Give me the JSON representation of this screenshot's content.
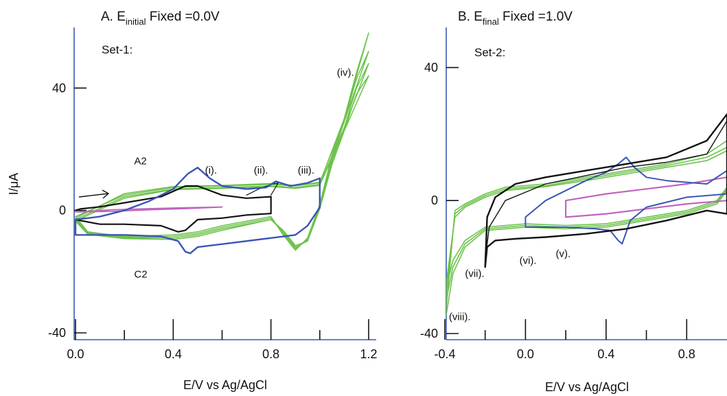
{
  "chart_data": [
    {
      "type": "line",
      "title_prefix": "A. E",
      "title_subscript": "initial",
      "title_suffix": " Fixed =0.0V",
      "set_label": "Set-1:",
      "xlabel": "E/V vs Ag/AgCl",
      "ylabel": "I/μA",
      "xlim": [
        0.0,
        1.2
      ],
      "ylim": [
        -40,
        58
      ],
      "x_ticks": [
        0.0,
        0.4,
        0.8,
        1.2
      ],
      "x_tick_labels": [
        "0.0",
        "0.4",
        "0.8",
        "1.2"
      ],
      "y_ticks": [
        -40,
        0,
        40
      ],
      "y_tick_labels": [
        "-40",
        "0",
        "40"
      ],
      "annotations": [
        {
          "text": "A2",
          "x": 0.24,
          "y": 15
        },
        {
          "text": "C2",
          "x": 0.24,
          "y": -22
        },
        {
          "text": "(i).",
          "x": 0.53,
          "y": 12
        },
        {
          "text": "(ii).",
          "x": 0.73,
          "y": 12
        },
        {
          "text": "(iii).",
          "x": 0.91,
          "y": 12
        },
        {
          "text": "(iv).",
          "x": 1.07,
          "y": 44
        }
      ],
      "series": [
        {
          "color": "#6cc24a",
          "width": 1.5,
          "x": [
            0.0,
            0.2,
            0.4,
            0.6,
            0.8,
            0.9,
            1.0,
            1.1,
            1.2,
            1.15,
            1.1,
            1.05,
            1.0,
            0.95,
            0.9,
            0.85,
            0.8,
            0.6,
            0.5,
            0.4,
            0.2,
            0.05,
            0.0
          ],
          "y": [
            -2,
            5,
            7.5,
            8,
            8.5,
            8,
            9,
            30,
            58,
            45,
            30,
            18,
            2,
            -9,
            -13,
            -8,
            -2,
            -5,
            -7,
            -8,
            -8.5,
            -7,
            -2
          ]
        },
        {
          "color": "#6cc24a",
          "width": 1.5,
          "x": [
            0.0,
            0.2,
            0.4,
            0.6,
            0.8,
            0.9,
            1.0,
            1.1,
            1.2,
            1.15,
            1.1,
            1.05,
            1.0,
            0.95,
            0.9,
            0.85,
            0.8,
            0.6,
            0.5,
            0.4,
            0.2,
            0.05,
            0.0
          ],
          "y": [
            -3,
            4.5,
            7,
            7.5,
            8,
            7.5,
            8.5,
            27,
            48,
            40,
            27,
            16,
            1,
            -10,
            -12,
            -7,
            -3,
            -6,
            -8,
            -9,
            -9,
            -7.5,
            -3
          ]
        },
        {
          "color": "#6cc24a",
          "width": 1.5,
          "x": [
            0.0,
            0.2,
            0.4,
            0.6,
            0.8,
            0.9,
            1.0,
            1.1,
            1.2,
            1.15,
            1.1,
            1.05,
            1.0,
            0.95,
            0.9,
            0.85,
            0.8,
            0.6,
            0.5,
            0.4,
            0.2,
            0.05,
            0.0
          ],
          "y": [
            -2.5,
            5.5,
            7.8,
            8.2,
            8.8,
            8.2,
            9.2,
            29,
            52,
            43,
            29,
            17,
            1.5,
            -9.5,
            -12.5,
            -7.5,
            -2.5,
            -5.5,
            -7.5,
            -8.5,
            -8.8,
            -7.2,
            -2.5
          ]
        },
        {
          "color": "#6cc24a",
          "width": 1.5,
          "x": [
            0.0,
            0.2,
            0.4,
            0.6,
            0.8,
            0.9,
            1.0,
            1.1,
            1.2,
            1.15,
            1.1,
            1.05,
            1.0,
            0.95,
            0.9,
            0.85,
            0.8,
            0.6,
            0.5,
            0.4,
            0.2,
            0.05,
            0.0
          ],
          "y": [
            -3.5,
            4,
            6.8,
            7.2,
            7.8,
            7.2,
            8.2,
            26,
            44,
            38,
            26,
            15,
            0.5,
            -10,
            -11.5,
            -6.5,
            -3,
            -6.5,
            -8.5,
            -9.5,
            -9.2,
            -7.8,
            -3.5
          ]
        },
        {
          "color": "#c064c0",
          "width": 1.8,
          "x": [
            0.0,
            0.15,
            0.3,
            0.45,
            0.6,
            0.45,
            0.3,
            0.15,
            0.0
          ],
          "y": [
            -0.5,
            0.2,
            0.6,
            0.9,
            1.1,
            0.6,
            0.2,
            -0.3,
            -0.5
          ]
        },
        {
          "color": "#111111",
          "width": 2.2,
          "x": [
            0.0,
            0.02,
            0.1,
            0.2,
            0.35,
            0.45,
            0.5,
            0.6,
            0.7,
            0.8,
            0.8,
            0.7,
            0.6,
            0.5,
            0.45,
            0.42,
            0.35,
            0.2,
            0.1,
            0.0
          ],
          "y": [
            0.0,
            0.5,
            1.2,
            2.5,
            4.5,
            8.0,
            8.0,
            5.0,
            4.0,
            4.5,
            -1.0,
            -1.5,
            -2.5,
            -3.0,
            -6.5,
            -7.0,
            -5.0,
            -4.5,
            -4.5,
            -3.0
          ]
        },
        {
          "color": "#111111",
          "width": 1.2,
          "x": [
            0.7,
            0.75,
            0.8,
            0.83,
            0.8
          ],
          "y": [
            5.0,
            7.0,
            8.5,
            9.0,
            5.0
          ]
        },
        {
          "color": "#3b55b5",
          "width": 2.4,
          "x": [
            0.0,
            0.1,
            0.2,
            0.3,
            0.4,
            0.46,
            0.5,
            0.55,
            0.6,
            0.7,
            0.78,
            0.82,
            0.88,
            0.95,
            1.0,
            1.0,
            0.95,
            0.9,
            0.8,
            0.6,
            0.5,
            0.47,
            0.45,
            0.42,
            0.35,
            0.2,
            0.0,
            0.0
          ],
          "y": [
            -3.0,
            -2.0,
            0.0,
            3.0,
            7.0,
            12.0,
            14.0,
            10.5,
            8.0,
            7.0,
            7.5,
            9.5,
            8.0,
            9.0,
            10.5,
            1.0,
            -5.0,
            -8.0,
            -9.0,
            -11.0,
            -12.0,
            -14.0,
            -13.5,
            -10.0,
            -8.5,
            -8.0,
            -8.0,
            -3.0
          ]
        }
      ]
    },
    {
      "type": "line",
      "title_prefix": "B. E",
      "title_subscript": "final",
      "title_suffix": " Fixed =1.0V",
      "set_label": "Set-2:",
      "xlabel": "E/V vs Ag/AgCl",
      "ylabel": "",
      "xlim": [
        -0.4,
        1.0
      ],
      "ylim": [
        -40,
        50
      ],
      "x_ticks": [
        -0.4,
        0.0,
        0.4,
        0.8
      ],
      "x_tick_labels": [
        "-0.4",
        "0.0",
        "0.4",
        "0.8"
      ],
      "y_ticks": [
        -40,
        0,
        40
      ],
      "y_tick_labels": [
        "-40",
        "0",
        "40"
      ],
      "annotations": [
        {
          "text": "(v).",
          "x": 0.15,
          "y": -17
        },
        {
          "text": "(vi).",
          "x": -0.03,
          "y": -19
        },
        {
          "text": "(vii).",
          "x": -0.3,
          "y": -23
        },
        {
          "text": "(viii).",
          "x": -0.38,
          "y": -36
        }
      ],
      "series": [
        {
          "color": "#6cc24a",
          "width": 1.6,
          "x": [
            -0.4,
            -0.36,
            -0.3,
            -0.2,
            0.0,
            0.2,
            0.4,
            0.6,
            0.8,
            0.95,
            1.0,
            1.0,
            0.9,
            0.7,
            0.5,
            0.3,
            0.1,
            -0.1,
            -0.2,
            -0.3,
            -0.35,
            -0.4
          ],
          "y": [
            -37,
            -22,
            -14,
            -9,
            -8,
            -8.5,
            -8,
            -6,
            -4,
            -1,
            3,
            18,
            14,
            11,
            9,
            7,
            5,
            4,
            2,
            -1,
            -3,
            -37
          ]
        },
        {
          "color": "#6cc24a",
          "width": 1.6,
          "x": [
            -0.4,
            -0.36,
            -0.3,
            -0.2,
            0.0,
            0.2,
            0.4,
            0.6,
            0.8,
            0.95,
            1.0,
            1.0,
            0.9,
            0.7,
            0.5,
            0.3,
            0.1,
            -0.1,
            -0.2,
            -0.3,
            -0.35,
            -0.4
          ],
          "y": [
            -32,
            -20,
            -13,
            -8.5,
            -7.5,
            -8,
            -7.5,
            -5.5,
            -3.5,
            -0.5,
            3.5,
            16,
            13,
            10.5,
            8.5,
            6.5,
            4.5,
            3.5,
            1.5,
            -1.5,
            -4,
            -32
          ]
        },
        {
          "color": "#6cc24a",
          "width": 1.6,
          "x": [
            -0.4,
            -0.36,
            -0.3,
            -0.2,
            0.0,
            0.2,
            0.4,
            0.6,
            0.8,
            0.95,
            1.0,
            1.0,
            0.9,
            0.7,
            0.5,
            0.3,
            0.1,
            -0.1,
            -0.2,
            -0.3,
            -0.35,
            -0.4
          ],
          "y": [
            -28,
            -18,
            -12,
            -8,
            -7,
            -7.5,
            -7,
            -5,
            -3,
            0,
            4,
            15,
            12,
            10,
            8,
            6,
            4.2,
            3,
            1,
            -2,
            -5,
            -28
          ]
        },
        {
          "color": "#c064c0",
          "width": 2.2,
          "x": [
            0.2,
            0.2,
            0.4,
            0.6,
            0.8,
            1.0,
            1.0,
            0.8,
            0.6,
            0.4,
            0.2
          ],
          "y": [
            -5.0,
            0.0,
            2.0,
            3.5,
            5.0,
            7.0,
            0.0,
            -1.0,
            -2.5,
            -4.0,
            -5.0
          ]
        },
        {
          "color": "#3b55b5",
          "width": 2.0,
          "x": [
            0.0,
            0.0,
            0.1,
            0.2,
            0.3,
            0.4,
            0.46,
            0.5,
            0.54,
            0.6,
            0.7,
            0.8,
            0.9,
            1.0,
            1.0,
            0.8,
            0.6,
            0.52,
            0.48,
            0.46,
            0.42,
            0.35,
            0.2,
            0.0
          ],
          "y": [
            -8.0,
            -5.0,
            0.0,
            3.0,
            6.0,
            8.5,
            11.0,
            13.0,
            10.0,
            7.0,
            6.0,
            5.5,
            5.0,
            9.0,
            2.0,
            1.0,
            -2.0,
            -6.0,
            -13.0,
            -12.0,
            -9.0,
            -8.5,
            -8.0,
            -8.0
          ]
        },
        {
          "color": "#111111",
          "width": 2.4,
          "x": [
            -0.2,
            -0.19,
            -0.15,
            -0.05,
            0.1,
            0.3,
            0.5,
            0.7,
            0.9,
            1.0,
            1.0,
            0.9,
            0.7,
            0.5,
            0.3,
            0.1,
            -0.05,
            -0.15,
            -0.19,
            -0.2
          ],
          "y": [
            -20,
            -14,
            -12,
            -11.5,
            -11,
            -10,
            -8.5,
            -6,
            -3,
            -4,
            26,
            18,
            13,
            11,
            9,
            7,
            5,
            1,
            -5,
            -20
          ]
        },
        {
          "color": "#111111",
          "width": 1.4,
          "x": [
            -0.2,
            -0.18,
            -0.1,
            0.1,
            0.3,
            0.5,
            0.7,
            0.9,
            1.0
          ],
          "y": [
            -18,
            -8,
            0,
            5,
            7.5,
            10,
            11.5,
            14,
            24
          ]
        }
      ]
    }
  ]
}
